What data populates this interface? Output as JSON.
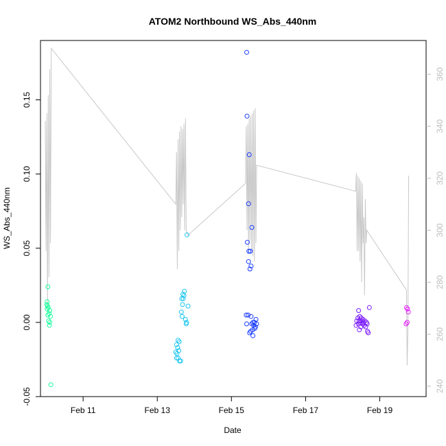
{
  "chart_data": {
    "type": "scatter",
    "title": "ATOM2 Northbound WS_Abs_440nm",
    "xlabel": "Date",
    "ylabel": "WS_Abs_440nm",
    "xlim": [
      9.85,
      20.25
    ],
    "ylim": [
      -0.05,
      0.19
    ],
    "y2lim": [
      236,
      373
    ],
    "grid": false,
    "x_ticks": [
      {
        "value": 11,
        "label": "Feb 11"
      },
      {
        "value": 13,
        "label": "Feb 13"
      },
      {
        "value": 15,
        "label": "Feb 15"
      },
      {
        "value": 17,
        "label": "Feb 17"
      },
      {
        "value": 19,
        "label": "Feb 19"
      }
    ],
    "y_ticks": [
      {
        "value": -0.05,
        "label": "-0.05"
      },
      {
        "value": 0.0,
        "label": "0.00"
      },
      {
        "value": 0.05,
        "label": "0.05"
      },
      {
        "value": 0.1,
        "label": "0.10"
      },
      {
        "value": 0.15,
        "label": "0.15"
      }
    ],
    "y2_ticks": [
      {
        "value": 240,
        "label": "240"
      },
      {
        "value": 260,
        "label": "260"
      },
      {
        "value": 280,
        "label": "280"
      },
      {
        "value": 300,
        "label": "300"
      },
      {
        "value": 320,
        "label": "320"
      },
      {
        "value": 340,
        "label": "340"
      },
      {
        "value": 360,
        "label": "360"
      }
    ],
    "colors": {
      "axis": "#000000",
      "secondary_axis": "#bdbdbd",
      "line": "#c8c8c8",
      "groups": [
        "#1aff9c",
        "#1ac6f0",
        "#1a3cff",
        "#7a1aff",
        "#e61aff"
      ]
    },
    "points": [
      {
        "g": 0,
        "x": 10.05,
        "y": 0.024
      },
      {
        "g": 0,
        "x": 10.03,
        "y": 0.014
      },
      {
        "g": 0,
        "x": 10.02,
        "y": 0.012
      },
      {
        "g": 0,
        "x": 10.04,
        "y": 0.011
      },
      {
        "g": 0,
        "x": 10.06,
        "y": 0.01
      },
      {
        "g": 0,
        "x": 10.03,
        "y": 0.009
      },
      {
        "g": 0,
        "x": 10.1,
        "y": 0.008
      },
      {
        "g": 0,
        "x": 10.08,
        "y": 0.006
      },
      {
        "g": 0,
        "x": 10.05,
        "y": 0.005
      },
      {
        "g": 0,
        "x": 10.12,
        "y": 0.004
      },
      {
        "g": 0,
        "x": 10.07,
        "y": 0.001
      },
      {
        "g": 0,
        "x": 10.1,
        "y": 0.0
      },
      {
        "g": 0,
        "x": 10.09,
        "y": -0.002
      },
      {
        "g": 0,
        "x": 10.13,
        "y": -0.042
      },
      {
        "g": 1,
        "x": 13.8,
        "y": 0.059
      },
      {
        "g": 1,
        "x": 13.73,
        "y": 0.021
      },
      {
        "g": 1,
        "x": 13.69,
        "y": 0.019
      },
      {
        "g": 1,
        "x": 13.72,
        "y": 0.018
      },
      {
        "g": 1,
        "x": 13.66,
        "y": 0.016
      },
      {
        "g": 1,
        "x": 13.7,
        "y": 0.016
      },
      {
        "g": 1,
        "x": 13.68,
        "y": 0.012
      },
      {
        "g": 1,
        "x": 13.83,
        "y": 0.011
      },
      {
        "g": 1,
        "x": 13.65,
        "y": 0.007
      },
      {
        "g": 1,
        "x": 13.67,
        "y": 0.004
      },
      {
        "g": 1,
        "x": 13.76,
        "y": 0.002
      },
      {
        "g": 1,
        "x": 13.79,
        "y": 0.0
      },
      {
        "g": 1,
        "x": 13.78,
        "y": -0.001
      },
      {
        "g": 1,
        "x": 13.56,
        "y": -0.012
      },
      {
        "g": 1,
        "x": 13.59,
        "y": -0.013
      },
      {
        "g": 1,
        "x": 13.52,
        "y": -0.015
      },
      {
        "g": 1,
        "x": 13.55,
        "y": -0.017
      },
      {
        "g": 1,
        "x": 13.5,
        "y": -0.02
      },
      {
        "g": 1,
        "x": 13.53,
        "y": -0.021
      },
      {
        "g": 1,
        "x": 13.58,
        "y": -0.019
      },
      {
        "g": 1,
        "x": 13.52,
        "y": -0.024
      },
      {
        "g": 1,
        "x": 13.56,
        "y": -0.024
      },
      {
        "g": 1,
        "x": 13.6,
        "y": -0.026
      },
      {
        "g": 1,
        "x": 13.63,
        "y": -0.026
      },
      {
        "g": 2,
        "x": 15.41,
        "y": 0.182
      },
      {
        "g": 2,
        "x": 15.42,
        "y": 0.139
      },
      {
        "g": 2,
        "x": 15.48,
        "y": 0.113
      },
      {
        "g": 2,
        "x": 15.46,
        "y": 0.08
      },
      {
        "g": 2,
        "x": 15.55,
        "y": 0.064
      },
      {
        "g": 2,
        "x": 15.43,
        "y": 0.054
      },
      {
        "g": 2,
        "x": 15.47,
        "y": 0.048
      },
      {
        "g": 2,
        "x": 15.51,
        "y": 0.048
      },
      {
        "g": 2,
        "x": 15.46,
        "y": 0.041
      },
      {
        "g": 2,
        "x": 15.53,
        "y": 0.038
      },
      {
        "g": 2,
        "x": 15.5,
        "y": 0.036
      },
      {
        "g": 2,
        "x": 15.4,
        "y": 0.005
      },
      {
        "g": 2,
        "x": 15.45,
        "y": 0.005
      },
      {
        "g": 2,
        "x": 15.53,
        "y": 0.004
      },
      {
        "g": 2,
        "x": 15.66,
        "y": 0.002
      },
      {
        "g": 2,
        "x": 15.58,
        "y": 0.0
      },
      {
        "g": 2,
        "x": 15.62,
        "y": 0.0
      },
      {
        "g": 2,
        "x": 15.68,
        "y": -0.001
      },
      {
        "g": 2,
        "x": 15.55,
        "y": -0.001
      },
      {
        "g": 2,
        "x": 15.41,
        "y": -0.001
      },
      {
        "g": 2,
        "x": 15.6,
        "y": -0.002
      },
      {
        "g": 2,
        "x": 15.65,
        "y": -0.003
      },
      {
        "g": 2,
        "x": 15.63,
        "y": -0.004
      },
      {
        "g": 2,
        "x": 15.57,
        "y": -0.005
      },
      {
        "g": 2,
        "x": 15.52,
        "y": -0.006
      },
      {
        "g": 2,
        "x": 15.49,
        "y": -0.007
      },
      {
        "g": 2,
        "x": 15.58,
        "y": -0.009
      },
      {
        "g": 3,
        "x": 18.72,
        "y": 0.01
      },
      {
        "g": 3,
        "x": 18.43,
        "y": 0.008
      },
      {
        "g": 3,
        "x": 18.46,
        "y": 0.004
      },
      {
        "g": 3,
        "x": 18.41,
        "y": 0.003
      },
      {
        "g": 3,
        "x": 18.5,
        "y": 0.003
      },
      {
        "g": 3,
        "x": 18.55,
        "y": 0.002
      },
      {
        "g": 3,
        "x": 18.38,
        "y": 0.001
      },
      {
        "g": 3,
        "x": 18.44,
        "y": 0.001
      },
      {
        "g": 3,
        "x": 18.52,
        "y": 0.001
      },
      {
        "g": 3,
        "x": 18.6,
        "y": 0.001
      },
      {
        "g": 3,
        "x": 18.47,
        "y": 0.0
      },
      {
        "g": 3,
        "x": 18.56,
        "y": 0.0
      },
      {
        "g": 3,
        "x": 18.64,
        "y": 0.0
      },
      {
        "g": 3,
        "x": 18.42,
        "y": -0.001
      },
      {
        "g": 3,
        "x": 18.53,
        "y": -0.001
      },
      {
        "g": 3,
        "x": 18.66,
        "y": -0.001
      },
      {
        "g": 3,
        "x": 18.58,
        "y": -0.002
      },
      {
        "g": 3,
        "x": 18.36,
        "y": -0.002
      },
      {
        "g": 3,
        "x": 18.62,
        "y": -0.003
      },
      {
        "g": 3,
        "x": 18.49,
        "y": -0.003
      },
      {
        "g": 3,
        "x": 18.45,
        "y": -0.005
      },
      {
        "g": 3,
        "x": 18.67,
        "y": -0.006
      },
      {
        "g": 3,
        "x": 18.69,
        "y": -0.007
      },
      {
        "g": 4,
        "x": 19.72,
        "y": 0.01
      },
      {
        "g": 4,
        "x": 19.75,
        "y": 0.009
      },
      {
        "g": 4,
        "x": 19.77,
        "y": 0.007
      },
      {
        "g": 4,
        "x": 19.74,
        "y": 0.0
      },
      {
        "g": 4,
        "x": 19.71,
        "y": -0.001
      }
    ],
    "line_y2": [
      [
        9.98,
        342
      ],
      [
        10.0,
        292
      ],
      [
        10.02,
        345
      ],
      [
        10.04,
        270
      ],
      [
        10.06,
        352
      ],
      [
        10.08,
        282
      ],
      [
        10.1,
        362
      ],
      [
        10.12,
        295
      ],
      [
        10.14,
        370
      ],
      [
        13.5,
        310
      ],
      [
        13.52,
        330
      ],
      [
        13.54,
        285
      ],
      [
        13.56,
        335
      ],
      [
        13.58,
        292
      ],
      [
        13.6,
        338
      ],
      [
        13.62,
        300
      ],
      [
        13.64,
        340
      ],
      [
        13.66,
        305
      ],
      [
        13.68,
        339
      ],
      [
        13.7,
        310
      ],
      [
        13.72,
        341
      ],
      [
        13.74,
        300
      ],
      [
        13.76,
        343
      ],
      [
        13.78,
        300
      ],
      [
        13.82,
        298
      ],
      [
        15.38,
        318
      ],
      [
        15.4,
        340
      ],
      [
        15.42,
        300
      ],
      [
        15.44,
        341
      ],
      [
        15.46,
        291
      ],
      [
        15.48,
        343
      ],
      [
        15.5,
        296
      ],
      [
        15.52,
        344
      ],
      [
        15.54,
        292
      ],
      [
        15.56,
        345
      ],
      [
        15.58,
        290
      ],
      [
        15.6,
        346
      ],
      [
        15.62,
        288
      ],
      [
        15.64,
        347
      ],
      [
        15.66,
        295
      ],
      [
        15.68,
        325
      ],
      [
        18.35,
        315
      ],
      [
        18.37,
        322
      ],
      [
        18.39,
        292
      ],
      [
        18.41,
        321
      ],
      [
        18.43,
        292
      ],
      [
        18.45,
        320
      ],
      [
        18.47,
        288
      ],
      [
        18.49,
        319
      ],
      [
        18.51,
        280
      ],
      [
        18.53,
        318
      ],
      [
        18.55,
        295
      ],
      [
        18.57,
        305
      ],
      [
        18.59,
        275
      ],
      [
        18.61,
        312
      ],
      [
        18.63,
        295
      ],
      [
        18.65,
        300
      ],
      [
        19.72,
        277
      ],
      [
        19.74,
        248
      ],
      [
        19.76,
        262
      ],
      [
        19.78,
        321
      ]
    ]
  }
}
